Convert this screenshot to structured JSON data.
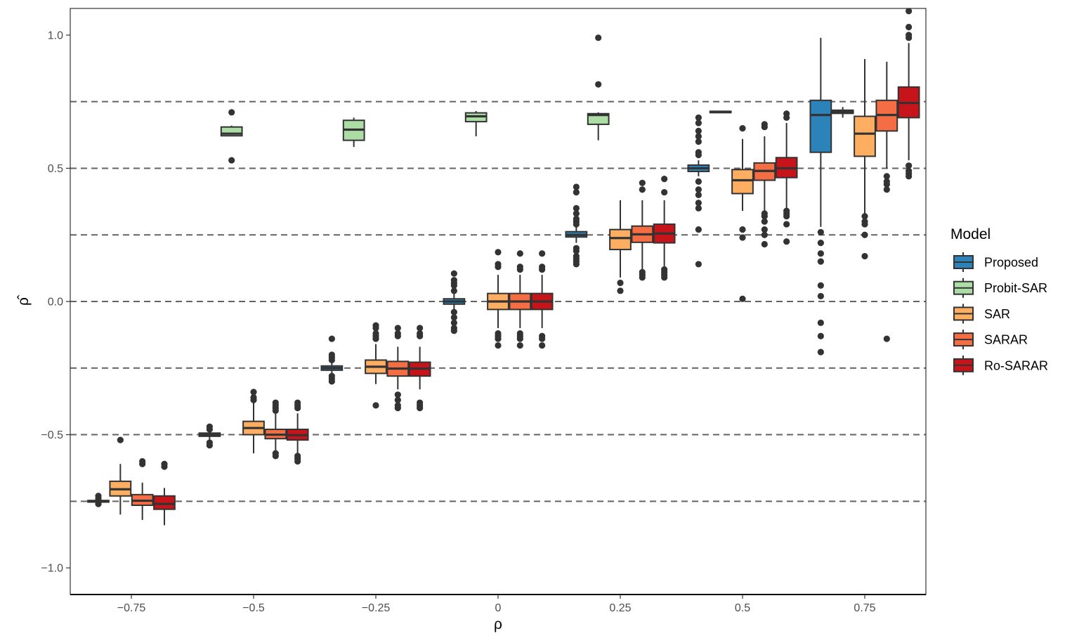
{
  "chart_data": {
    "type": "boxplot",
    "xlabel": "ρ",
    "ylabel": "ρ̂",
    "ylim": [
      -1.1,
      1.1
    ],
    "y_ticks": [
      -1.0,
      -0.5,
      0.0,
      0.5,
      1.0
    ],
    "y_tick_labels": [
      "−1.0",
      "−0.5",
      "0.0",
      "0.5",
      "1.0"
    ],
    "categories": [
      "−0.75",
      "−0.5",
      "−0.25",
      "0",
      "0.25",
      "0.5",
      "0.75"
    ],
    "category_values": [
      -0.75,
      -0.5,
      -0.25,
      0,
      0.25,
      0.5,
      0.75
    ],
    "reference_lines": [
      -0.75,
      -0.5,
      -0.25,
      0.0,
      0.25,
      0.5,
      0.75
    ],
    "reference_line_color": "#636363",
    "grid": false,
    "legend": {
      "title": "Model",
      "position": "right"
    },
    "series": [
      {
        "name": "Proposed",
        "color": "#2b83ba",
        "boxes": [
          {
            "lw": -0.755,
            "q1": -0.753,
            "med": -0.75,
            "q3": -0.747,
            "uw": -0.745,
            "out": [
              -0.76,
              -0.74,
              -0.73
            ]
          },
          {
            "lw": -0.52,
            "q1": -0.506,
            "med": -0.5,
            "q3": -0.494,
            "uw": -0.48,
            "out": [
              -0.47,
              -0.48,
              -0.53,
              -0.54
            ]
          },
          {
            "lw": -0.275,
            "q1": -0.258,
            "med": -0.25,
            "q3": -0.242,
            "uw": -0.23,
            "out": [
              -0.14,
              -0.2,
              -0.21,
              -0.22,
              -0.28,
              -0.29,
              -0.3
            ]
          },
          {
            "lw": -0.03,
            "q1": -0.01,
            "med": 0.0,
            "q3": 0.01,
            "uw": 0.03,
            "out": [
              0.105,
              0.08,
              0.07,
              0.06,
              0.04,
              -0.04,
              -0.06,
              -0.08,
              -0.1,
              -0.11
            ]
          },
          {
            "lw": 0.22,
            "q1": 0.242,
            "med": 0.25,
            "q3": 0.262,
            "uw": 0.28,
            "out": [
              0.43,
              0.41,
              0.35,
              0.33,
              0.31,
              0.3,
              0.29,
              0.2,
              0.19,
              0.17,
              0.16,
              0.15,
              0.14
            ]
          },
          {
            "lw": 0.47,
            "q1": 0.488,
            "med": 0.5,
            "q3": 0.512,
            "uw": 0.53,
            "out": [
              0.69,
              0.67,
              0.64,
              0.62,
              0.6,
              0.56,
              0.55,
              0.45,
              0.42,
              0.4,
              0.37,
              0.35,
              0.27,
              0.14
            ]
          },
          {
            "lw": 0.28,
            "q1": 0.56,
            "med": 0.7,
            "q3": 0.755,
            "uw": 0.99,
            "out": [
              0.26,
              0.22,
              0.18,
              0.15,
              0.06,
              0.02,
              -0.08,
              -0.13,
              -0.19
            ]
          }
        ]
      },
      {
        "name": "Probit-SAR",
        "color": "#abdda4",
        "boxes": [
          {
            "lw": 0.62,
            "q1": 0.622,
            "med": 0.63,
            "q3": 0.655,
            "uw": 0.66,
            "out": [
              0.71,
              0.53
            ]
          },
          {
            "lw": 0.58,
            "q1": 0.605,
            "med": 0.645,
            "q3": 0.68,
            "uw": 0.69,
            "out": []
          },
          {
            "lw": 0.62,
            "q1": 0.675,
            "med": 0.695,
            "q3": 0.708,
            "uw": 0.715,
            "out": []
          },
          {
            "lw": 0.605,
            "q1": 0.665,
            "med": 0.7,
            "q3": 0.705,
            "uw": 0.71,
            "out": [
              0.99,
              0.815
            ]
          },
          {
            "lw": 0.708,
            "q1": 0.709,
            "med": 0.712,
            "q3": 0.714,
            "uw": 0.716,
            "out": []
          },
          {
            "lw": 0.69,
            "q1": 0.706,
            "med": 0.712,
            "q3": 0.718,
            "uw": 0.73,
            "out": []
          }
        ]
      },
      {
        "name": "SAR",
        "color": "#fdae61",
        "boxes": [
          {
            "lw": -0.8,
            "q1": -0.73,
            "med": -0.705,
            "q3": -0.675,
            "uw": -0.61,
            "out": [
              -0.52
            ]
          },
          {
            "lw": -0.57,
            "q1": -0.5,
            "med": -0.475,
            "q3": -0.45,
            "uw": -0.38,
            "out": [
              -0.34,
              -0.36,
              -0.37
            ]
          },
          {
            "lw": -0.31,
            "q1": -0.27,
            "med": -0.245,
            "q3": -0.22,
            "uw": -0.16,
            "out": [
              -0.09,
              -0.1,
              -0.12,
              -0.13,
              -0.14,
              -0.39
            ]
          },
          {
            "lw": -0.1,
            "q1": -0.03,
            "med": 0.0,
            "q3": 0.03,
            "uw": 0.1,
            "out": [
              0.185,
              0.14,
              0.13,
              -0.12,
              -0.13,
              -0.14,
              -0.165
            ]
          },
          {
            "lw": 0.09,
            "q1": 0.195,
            "med": 0.238,
            "q3": 0.27,
            "uw": 0.38,
            "out": [
              0.07,
              0.04
            ]
          },
          {
            "lw": 0.34,
            "q1": 0.405,
            "med": 0.455,
            "q3": 0.495,
            "uw": 0.61,
            "out": [
              0.65,
              0.27,
              0.24,
              0.01
            ]
          },
          {
            "lw": 0.33,
            "q1": 0.545,
            "med": 0.63,
            "q3": 0.695,
            "uw": 0.91,
            "out": [
              0.32,
              0.3,
              0.29,
              0.25,
              0.17
            ]
          }
        ]
      },
      {
        "name": "SARAR",
        "color": "#f46d43",
        "boxes": [
          {
            "lw": -0.82,
            "q1": -0.765,
            "med": -0.748,
            "q3": -0.725,
            "uw": -0.68,
            "out": [
              -0.6,
              -0.61
            ]
          },
          {
            "lw": -0.57,
            "q1": -0.515,
            "med": -0.5,
            "q3": -0.48,
            "uw": -0.42,
            "out": [
              -0.38,
              -0.39,
              -0.4,
              -0.41,
              -0.57,
              -0.58
            ]
          },
          {
            "lw": -0.33,
            "q1": -0.28,
            "med": -0.252,
            "q3": -0.225,
            "uw": -0.17,
            "out": [
              -0.1,
              -0.12,
              -0.13,
              -0.35,
              -0.37,
              -0.39,
              -0.4
            ]
          },
          {
            "lw": -0.1,
            "q1": -0.03,
            "med": 0.0,
            "q3": 0.03,
            "uw": 0.1,
            "out": [
              0.18,
              0.13,
              0.12,
              -0.12,
              -0.13,
              -0.14,
              -0.165
            ]
          },
          {
            "lw": 0.12,
            "q1": 0.222,
            "med": 0.252,
            "q3": 0.283,
            "uw": 0.38,
            "out": [
              0.445,
              0.42,
              0.11,
              0.1,
              0.09
            ]
          },
          {
            "lw": 0.34,
            "q1": 0.455,
            "med": 0.49,
            "q3": 0.52,
            "uw": 0.62,
            "out": [
              0.665,
              0.655,
              0.33,
              0.32,
              0.3,
              0.27,
              0.25,
              0.215
            ]
          },
          {
            "lw": 0.5,
            "q1": 0.64,
            "med": 0.7,
            "q3": 0.755,
            "uw": 0.9,
            "out": [
              0.47,
              0.45,
              0.44,
              0.42,
              -0.14
            ]
          }
        ]
      },
      {
        "name": "Ro-SARAR",
        "color": "#c7141a",
        "boxes": [
          {
            "lw": -0.84,
            "q1": -0.78,
            "med": -0.76,
            "q3": -0.73,
            "uw": -0.7,
            "out": [
              -0.61,
              -0.62
            ]
          },
          {
            "lw": -0.58,
            "q1": -0.52,
            "med": -0.502,
            "q3": -0.48,
            "uw": -0.42,
            "out": [
              -0.38,
              -0.39,
              -0.4,
              -0.58,
              -0.59,
              -0.6
            ]
          },
          {
            "lw": -0.33,
            "q1": -0.28,
            "med": -0.252,
            "q3": -0.228,
            "uw": -0.17,
            "out": [
              -0.1,
              -0.12,
              -0.13,
              -0.38,
              -0.39,
              -0.4
            ]
          },
          {
            "lw": -0.1,
            "q1": -0.03,
            "med": 0.0,
            "q3": 0.03,
            "uw": 0.1,
            "out": [
              0.18,
              0.13,
              0.12,
              -0.13,
              -0.14,
              -0.165
            ]
          },
          {
            "lw": 0.13,
            "q1": 0.22,
            "med": 0.255,
            "q3": 0.29,
            "uw": 0.38,
            "out": [
              0.46,
              0.41,
              0.12,
              0.11,
              0.1,
              0.09
            ]
          },
          {
            "lw": 0.35,
            "q1": 0.465,
            "med": 0.5,
            "q3": 0.54,
            "uw": 0.67,
            "out": [
              0.705,
              0.69,
              0.34,
              0.33,
              0.32,
              0.29,
              0.225
            ]
          },
          {
            "lw": 0.53,
            "q1": 0.69,
            "med": 0.745,
            "q3": 0.805,
            "uw": 0.97,
            "out": [
              1.09,
              1.03,
              1.0,
              0.99,
              0.51,
              0.49,
              0.48,
              0.47
            ]
          }
        ]
      }
    ],
    "group_layout": [
      [
        "Proposed",
        "SAR",
        "SARAR",
        "Ro-SARAR"
      ],
      [
        "Proposed",
        "Probit-SAR",
        "SAR",
        "SARAR",
        "Ro-SARAR"
      ],
      [
        "Proposed",
        "Probit-SAR",
        "SAR",
        "SARAR",
        "Ro-SARAR"
      ],
      [
        "Proposed",
        "Probit-SAR",
        "SAR",
        "SARAR",
        "Ro-SARAR"
      ],
      [
        "Proposed",
        "Probit-SAR",
        "SAR",
        "SARAR",
        "Ro-SARAR"
      ],
      [
        "Proposed",
        "Probit-SAR",
        "SAR",
        "SARAR",
        "Ro-SARAR"
      ],
      [
        "Proposed",
        "Probit-SAR",
        "SAR",
        "SARAR",
        "Ro-SARAR"
      ]
    ]
  }
}
